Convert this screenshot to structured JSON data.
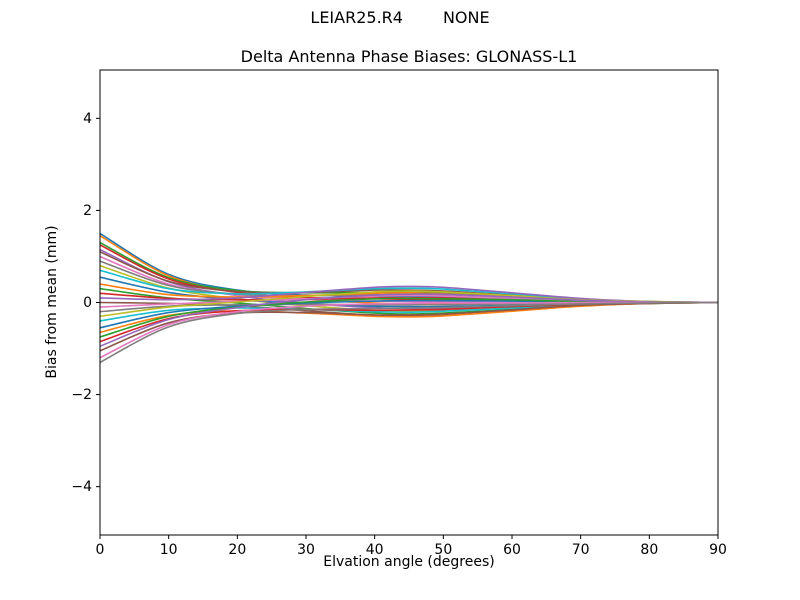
{
  "header": {
    "title_left": "LEIAR25.R4",
    "title_right": "NONE"
  },
  "chart_data": {
    "type": "line",
    "title": "Delta Antenna Phase Biases: GLONASS-L1",
    "xlabel": "Elvation angle (degrees)",
    "ylabel": "Bias from mean (mm)",
    "xlim": [
      0,
      90
    ],
    "ylim": [
      -5.05,
      5.05
    ],
    "grid": false,
    "legend": "none",
    "xticks": {
      "values": [
        0,
        10,
        20,
        30,
        40,
        50,
        60,
        70,
        80,
        90
      ],
      "labels": [
        "0",
        "10",
        "20",
        "30",
        "40",
        "50",
        "60",
        "70",
        "80",
        "90"
      ]
    },
    "yticks": {
      "values": [
        -4,
        -2,
        0,
        2,
        4
      ],
      "labels": [
        "−4",
        "−2",
        "0",
        "2",
        "4"
      ]
    },
    "x": [
      0,
      10,
      20,
      30,
      40,
      45,
      50,
      60,
      70,
      80,
      90
    ],
    "series": [
      {
        "name": "line-01",
        "color": "#1f77b4",
        "values": [
          1.5,
          0.61,
          0.27,
          0.16,
          0.14,
          0.13,
          0.11,
          0.07,
          0.03,
          0.01,
          0.0
        ]
      },
      {
        "name": "line-02",
        "color": "#ff7f0e",
        "values": [
          1.45,
          0.58,
          0.22,
          0.07,
          -0.01,
          -0.03,
          -0.03,
          -0.02,
          -0.01,
          0.0,
          0.0
        ]
      },
      {
        "name": "line-03",
        "color": "#2ca02c",
        "values": [
          1.3,
          0.54,
          0.26,
          0.21,
          0.22,
          0.22,
          0.2,
          0.13,
          0.05,
          0.01,
          0.0
        ]
      },
      {
        "name": "line-04",
        "color": "#d62728",
        "values": [
          1.25,
          0.51,
          0.22,
          0.11,
          0.08,
          0.07,
          0.06,
          0.04,
          0.02,
          0.0,
          0.0
        ]
      },
      {
        "name": "line-05",
        "color": "#9467bd",
        "values": [
          1.15,
          0.45,
          0.15,
          -0.02,
          -0.11,
          -0.13,
          -0.13,
          -0.09,
          -0.03,
          -0.01,
          0.0
        ]
      },
      {
        "name": "line-06",
        "color": "#8c564b",
        "values": [
          1.1,
          0.46,
          0.24,
          0.22,
          0.27,
          0.27,
          0.25,
          0.16,
          0.06,
          0.02,
          0.0
        ]
      },
      {
        "name": "line-07",
        "color": "#e377c2",
        "values": [
          1.0,
          0.4,
          0.16,
          0.07,
          0.03,
          0.02,
          0.01,
          0.0,
          0.0,
          0.0,
          0.0
        ]
      },
      {
        "name": "line-08",
        "color": "#7f7f7f",
        "values": [
          0.9,
          0.37,
          0.18,
          0.15,
          0.17,
          0.17,
          0.15,
          0.09,
          0.04,
          0.01,
          0.0
        ]
      },
      {
        "name": "line-09",
        "color": "#bcbd22",
        "values": [
          0.8,
          0.31,
          0.08,
          -0.07,
          -0.17,
          -0.19,
          -0.18,
          -0.12,
          -0.05,
          -0.01,
          0.0
        ]
      },
      {
        "name": "line-10",
        "color": "#17becf",
        "values": [
          0.7,
          0.3,
          0.19,
          0.23,
          0.3,
          0.31,
          0.29,
          0.19,
          0.08,
          0.02,
          0.0
        ]
      },
      {
        "name": "line-11",
        "color": "#1f77b4",
        "values": [
          0.55,
          0.22,
          0.06,
          -0.02,
          -0.08,
          -0.09,
          -0.09,
          -0.06,
          -0.02,
          -0.01,
          0.0
        ]
      },
      {
        "name": "line-12",
        "color": "#ff7f0e",
        "values": [
          0.4,
          0.17,
          0.12,
          0.15,
          0.2,
          0.21,
          0.19,
          0.12,
          0.05,
          0.01,
          0.0
        ]
      },
      {
        "name": "line-13",
        "color": "#2ca02c",
        "values": [
          0.3,
          0.1,
          -0.01,
          -0.13,
          -0.23,
          -0.25,
          -0.23,
          -0.15,
          -0.06,
          -0.02,
          0.0
        ]
      },
      {
        "name": "line-14",
        "color": "#d62728",
        "values": [
          0.2,
          0.09,
          0.06,
          0.07,
          0.1,
          0.1,
          0.1,
          0.06,
          0.03,
          0.01,
          0.0
        ]
      },
      {
        "name": "line-15",
        "color": "#9467bd",
        "values": [
          0.1,
          0.06,
          0.1,
          0.22,
          0.33,
          0.35,
          0.33,
          0.21,
          0.09,
          0.02,
          0.0
        ]
      },
      {
        "name": "line-16",
        "color": "#8c564b",
        "values": [
          0.0,
          -0.02,
          -0.07,
          -0.18,
          -0.28,
          -0.3,
          -0.28,
          -0.18,
          -0.07,
          -0.02,
          0.0
        ]
      },
      {
        "name": "line-17",
        "color": "#e377c2",
        "values": [
          -0.1,
          -0.03,
          0.02,
          0.08,
          0.14,
          0.15,
          0.14,
          0.09,
          0.04,
          0.01,
          0.0
        ]
      },
      {
        "name": "line-18",
        "color": "#7f7f7f",
        "values": [
          -0.2,
          -0.08,
          -0.05,
          -0.04,
          -0.05,
          -0.05,
          -0.05,
          -0.03,
          -0.01,
          0.0,
          0.0
        ]
      },
      {
        "name": "line-19",
        "color": "#bcbd22",
        "values": [
          -0.3,
          -0.1,
          0.01,
          0.13,
          0.23,
          0.25,
          0.23,
          0.15,
          0.06,
          0.02,
          0.0
        ]
      },
      {
        "name": "line-20",
        "color": "#17becf",
        "values": [
          -0.4,
          -0.17,
          -0.12,
          -0.15,
          -0.2,
          -0.21,
          -0.19,
          -0.12,
          -0.05,
          -0.01,
          0.0
        ]
      },
      {
        "name": "line-21",
        "color": "#1f77b4",
        "values": [
          -0.55,
          -0.22,
          -0.08,
          -0.01,
          0.03,
          0.04,
          0.04,
          0.03,
          0.01,
          0.0,
          0.0
        ]
      },
      {
        "name": "line-22",
        "color": "#ff7f0e",
        "values": [
          -0.65,
          -0.28,
          -0.18,
          -0.23,
          -0.3,
          -0.31,
          -0.29,
          -0.19,
          -0.08,
          -0.02,
          0.0
        ]
      },
      {
        "name": "line-23",
        "color": "#2ca02c",
        "values": [
          -0.75,
          -0.3,
          -0.1,
          0.01,
          0.08,
          0.09,
          0.08,
          0.06,
          0.02,
          0.01,
          0.0
        ]
      },
      {
        "name": "line-24",
        "color": "#d62728",
        "values": [
          -0.85,
          -0.35,
          -0.18,
          -0.15,
          -0.17,
          -0.16,
          -0.15,
          -0.09,
          -0.04,
          -0.01,
          0.0
        ]
      },
      {
        "name": "line-25",
        "color": "#9467bd",
        "values": [
          -0.95,
          -0.37,
          -0.11,
          0.06,
          0.16,
          0.18,
          0.18,
          0.12,
          0.05,
          0.01,
          0.0
        ]
      },
      {
        "name": "line-26",
        "color": "#8c564b",
        "values": [
          -1.05,
          -0.44,
          -0.23,
          -0.22,
          -0.27,
          -0.27,
          -0.25,
          -0.16,
          -0.06,
          -0.02,
          0.0
        ]
      },
      {
        "name": "line-27",
        "color": "#e377c2",
        "values": [
          -1.2,
          -0.48,
          -0.2,
          -0.08,
          -0.03,
          -0.02,
          -0.01,
          -0.01,
          0.0,
          0.0,
          0.0
        ]
      },
      {
        "name": "line-28",
        "color": "#7f7f7f",
        "values": [
          -1.3,
          -0.53,
          -0.24,
          -0.15,
          -0.13,
          -0.12,
          -0.11,
          -0.07,
          -0.03,
          -0.01,
          0.0
        ]
      }
    ]
  }
}
